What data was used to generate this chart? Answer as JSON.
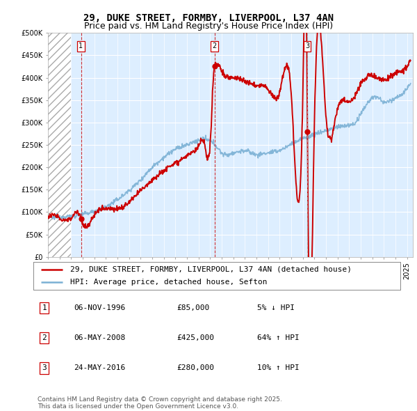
{
  "title": "29, DUKE STREET, FORMBY, LIVERPOOL, L37 4AN",
  "subtitle": "Price paid vs. HM Land Registry's House Price Index (HPI)",
  "ylim": [
    0,
    500000
  ],
  "ytick_vals": [
    0,
    50000,
    100000,
    150000,
    200000,
    250000,
    300000,
    350000,
    400000,
    450000,
    500000
  ],
  "ytick_labels": [
    "£0",
    "£50K",
    "£100K",
    "£150K",
    "£200K",
    "£250K",
    "£300K",
    "£350K",
    "£400K",
    "£450K",
    "£500K"
  ],
  "xlim_start": 1994.0,
  "xlim_end": 2025.5,
  "hatch_end": 1996.0,
  "sale_color": "#cc0000",
  "hpi_color": "#7ab0d4",
  "chart_bg": "#ddeeff",
  "background_color": "#ffffff",
  "grid_color": "#ffffff",
  "transactions": [
    {
      "date_num": 1996.85,
      "price": 85000,
      "label": "1"
    },
    {
      "date_num": 2008.37,
      "price": 425000,
      "label": "2"
    },
    {
      "date_num": 2016.39,
      "price": 280000,
      "label": "3"
    }
  ],
  "txn3_line_color": "#aaaaaa",
  "transaction_table": [
    {
      "num": "1",
      "date": "06-NOV-1996",
      "price": "£85,000",
      "vs_hpi": "5% ↓ HPI"
    },
    {
      "num": "2",
      "date": "06-MAY-2008",
      "price": "£425,000",
      "vs_hpi": "64% ↑ HPI"
    },
    {
      "num": "3",
      "date": "24-MAY-2016",
      "price": "£280,000",
      "vs_hpi": "10% ↑ HPI"
    }
  ],
  "legend_entries": [
    "29, DUKE STREET, FORMBY, LIVERPOOL, L37 4AN (detached house)",
    "HPI: Average price, detached house, Sefton"
  ],
  "footer": "Contains HM Land Registry data © Crown copyright and database right 2025.\nThis data is licensed under the Open Government Licence v3.0.",
  "title_fontsize": 10,
  "subtitle_fontsize": 9,
  "tick_fontsize": 7,
  "legend_fontsize": 8,
  "table_fontsize": 8,
  "footer_fontsize": 6.5
}
